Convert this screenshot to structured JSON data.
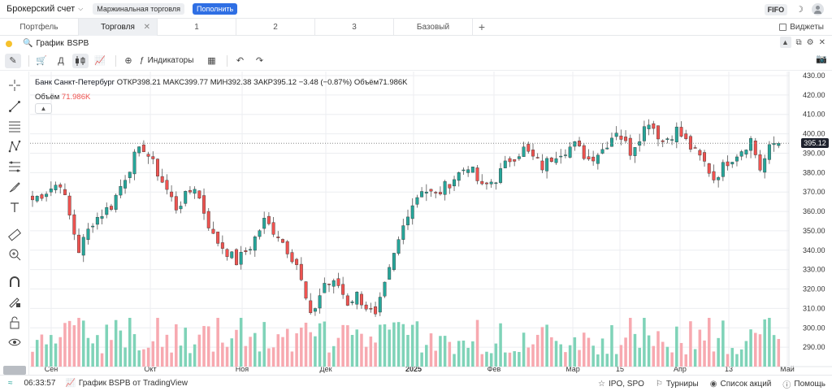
{
  "topbar": {
    "account": "Брокерский счет",
    "margin_badge": "Маржинальная торговля",
    "topup_button": "Пополнить",
    "fifo": "FIFO"
  },
  "tabs": {
    "items": [
      "Портфель",
      "Торговля",
      "1",
      "2",
      "3",
      "Базовый"
    ],
    "widgets": "Виджеты"
  },
  "search": {
    "label": "График",
    "ticker": "BSPB"
  },
  "toolbar": {
    "period": "Д",
    "indicators": "Индикаторы"
  },
  "legend": {
    "name": "Банк Санкт-Петербург",
    "open": "ОТКР398.21",
    "high": "МАКС399.77",
    "low": "МИН392.38",
    "close": "ЗАКР395.12",
    "change": "−3.48 (−0.87%)",
    "volume": "Объём71.986K",
    "volume_label": "Объём",
    "volume_value": "71.986K"
  },
  "status": {
    "time": "06:33:57",
    "tv_label": "График BSPB от TradingView",
    "ipo": "IPO, SPO",
    "tournaments": "Турниры",
    "promos": "Список акций",
    "help": "Помощь"
  },
  "colors": {
    "up": "#26a69a",
    "down": "#ef5350",
    "vol_up": "#7fd3b8",
    "vol_down": "#f7a9b0",
    "badge": "#1e222d",
    "accent": "#2f6fe4"
  },
  "chart_data": {
    "type": "candlestick",
    "symbol": "BSPB",
    "last_price": "395.12",
    "ylim": [
      280,
      430
    ],
    "y_ticks": [
      "430.00",
      "420.00",
      "410.00",
      "400.00",
      "390.00",
      "380.00",
      "370.00",
      "360.00",
      "350.00",
      "340.00",
      "330.00",
      "320.00",
      "310.00",
      "300.00",
      "290.00"
    ],
    "x_labels": [
      "Сен",
      "Окт",
      "Ноя",
      "Дек",
      "2025",
      "Фев",
      "Мар",
      "15",
      "Апр",
      "13",
      "Май"
    ],
    "anchors": [
      [
        0,
        366
      ],
      [
        6,
        375
      ],
      [
        10,
        340
      ],
      [
        13,
        355
      ],
      [
        17,
        363
      ],
      [
        22,
        388
      ],
      [
        24,
        393
      ],
      [
        27,
        380
      ],
      [
        31,
        362
      ],
      [
        35,
        373
      ],
      [
        39,
        347
      ],
      [
        44,
        334
      ],
      [
        47,
        342
      ],
      [
        50,
        355
      ],
      [
        53,
        348
      ],
      [
        57,
        333
      ],
      [
        60,
        305
      ],
      [
        63,
        323
      ],
      [
        66,
        322
      ],
      [
        68,
        313
      ],
      [
        70,
        317
      ],
      [
        74,
        305
      ],
      [
        78,
        337
      ],
      [
        81,
        360
      ],
      [
        84,
        372
      ],
      [
        87,
        368
      ],
      [
        90,
        375
      ],
      [
        94,
        384
      ],
      [
        97,
        372
      ],
      [
        100,
        377
      ],
      [
        103,
        387
      ],
      [
        106,
        392
      ],
      [
        110,
        383
      ],
      [
        113,
        390
      ],
      [
        117,
        394
      ],
      [
        120,
        387
      ],
      [
        123,
        392
      ],
      [
        126,
        402
      ],
      [
        129,
        391
      ],
      [
        133,
        407
      ],
      [
        136,
        396
      ],
      [
        139,
        402
      ],
      [
        142,
        393
      ],
      [
        145,
        385
      ],
      [
        147,
        377
      ],
      [
        150,
        386
      ],
      [
        153,
        392
      ],
      [
        155,
        397
      ],
      [
        157,
        382
      ],
      [
        159,
        392
      ],
      [
        161,
        398
      ]
    ],
    "volume_max": 100
  }
}
